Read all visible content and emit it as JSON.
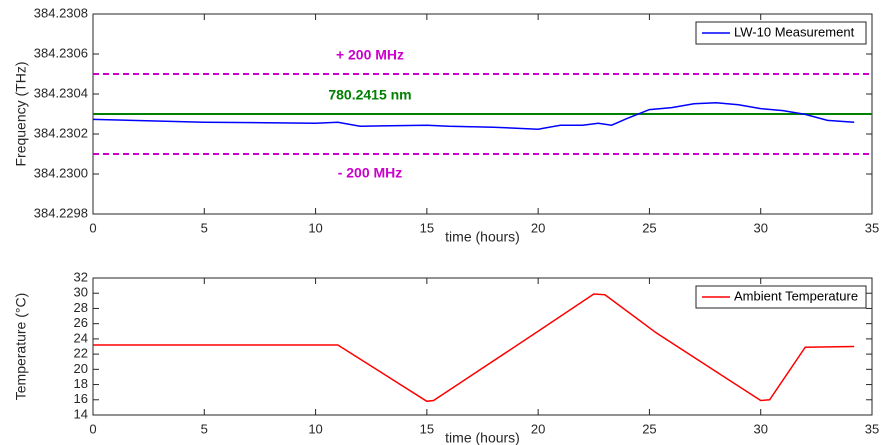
{
  "chart_data": [
    {
      "type": "line",
      "xlabel": "time (hours)",
      "ylabel": "Frequency (THz)",
      "xlim": [
        0,
        35
      ],
      "xticks": [
        0,
        5,
        10,
        15,
        20,
        25,
        30,
        35
      ],
      "ylim": [
        384.2298,
        384.2308
      ],
      "yticks": [
        384.2298,
        {
          "value": 384.23,
          "label": "384.2300"
        },
        384.2302,
        384.2304,
        384.2306,
        384.2308
      ],
      "legend": "upper right",
      "series": [
        {
          "name": "LW-10 Measurement",
          "color": "#0000ff",
          "x": [
            0,
            5,
            10,
            11,
            12,
            15,
            16,
            18,
            20,
            21,
            22,
            22.7,
            23.3,
            24,
            25,
            26,
            27,
            28,
            29,
            30,
            31,
            32,
            33,
            34.2
          ],
          "values": [
            384.230273,
            384.230259,
            384.230254,
            384.230259,
            384.230239,
            384.230244,
            384.230239,
            384.230234,
            384.230224,
            384.230244,
            384.230244,
            384.230254,
            384.230244,
            384.230278,
            384.230322,
            384.230332,
            384.230351,
            384.230356,
            384.230346,
            384.230327,
            384.230317,
            384.230298,
            384.230268,
            384.230259
          ]
        }
      ],
      "reference_lines": [
        {
          "value": 384.2305,
          "label": "+ 200 MHz",
          "color": "#cc00cc",
          "style": "dashed",
          "label_position": "above"
        },
        {
          "value": 384.2303,
          "label": "780.2415 nm",
          "color": "#008000",
          "style": "solid",
          "label_position": "above"
        },
        {
          "value": 384.2301,
          "label": "- 200 MHz",
          "color": "#cc00cc",
          "style": "dashed",
          "label_position": "below"
        }
      ]
    },
    {
      "type": "line",
      "xlabel": "time (hours)",
      "ylabel": "Temperature (°C)",
      "xlim": [
        0,
        35
      ],
      "xticks": [
        0,
        5,
        10,
        15,
        20,
        25,
        30,
        35
      ],
      "ylim": [
        14,
        32
      ],
      "yticks": [
        14,
        16,
        18,
        20,
        22,
        24,
        26,
        28,
        30,
        32
      ],
      "legend": "upper right",
      "series": [
        {
          "name": "Ambient Temperature",
          "color": "#ff0000",
          "x": [
            0,
            11,
            15,
            15.3,
            20,
            22.5,
            23,
            25.3,
            30,
            30.4,
            32,
            34.2
          ],
          "values": [
            23.2,
            23.2,
            15.8,
            15.9,
            25,
            29.9,
            29.8,
            24.8,
            15.9,
            16,
            22.9,
            23
          ]
        }
      ]
    }
  ]
}
